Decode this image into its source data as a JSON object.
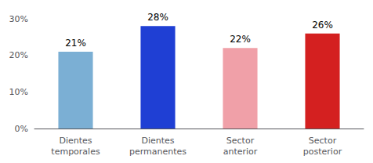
{
  "chart_data": {
    "type": "bar",
    "categories": [
      "Dientes\ntemporales",
      "Dientes\npermanentes",
      "Sector\nanterior",
      "Sector\nposterior"
    ],
    "values": [
      21,
      28,
      22,
      26
    ],
    "value_labels": [
      "21%",
      "28%",
      "22%",
      "26%"
    ],
    "data_labels": true,
    "colors": [
      "#7BAFD4",
      "#1F3FD4",
      "#F0A0A8",
      "#D42020"
    ],
    "ylim": [
      0,
      30
    ],
    "yticks": [
      {
        "value": 0,
        "label": "0%"
      },
      {
        "value": 10,
        "label": "10%"
      },
      {
        "value": 20,
        "label": "20%"
      },
      {
        "value": 30,
        "label": "30%"
      }
    ],
    "grid": false
  }
}
